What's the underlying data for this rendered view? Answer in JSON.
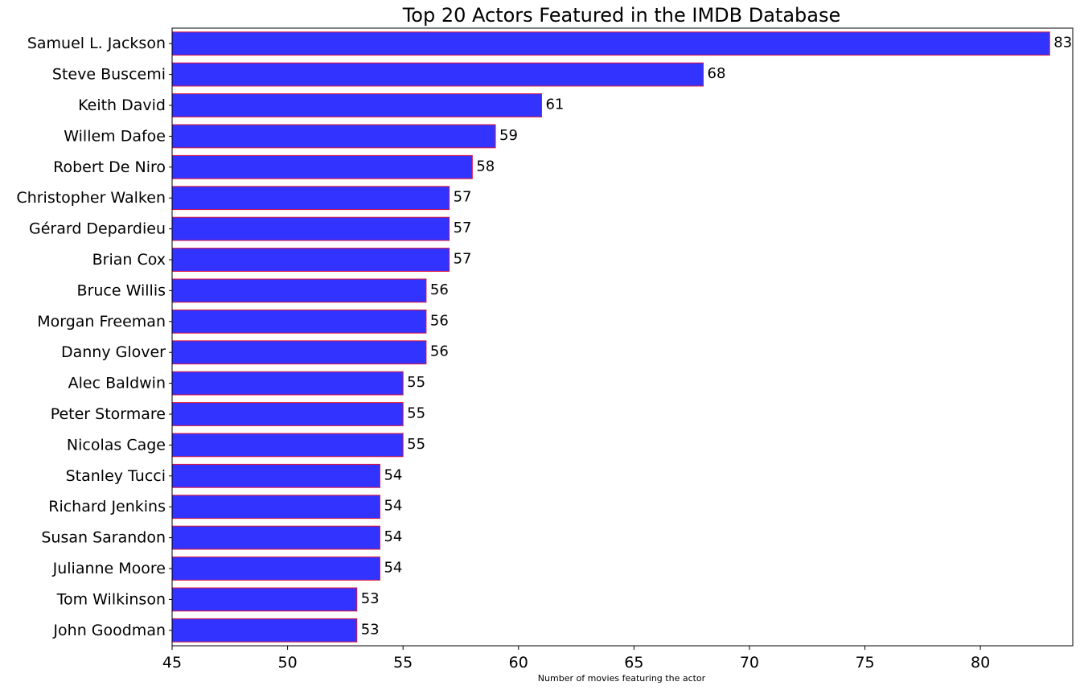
{
  "chart_data": {
    "type": "bar",
    "orientation": "horizontal",
    "title": "Top 20 Actors Featured in the IMDB Database",
    "xlabel": "Number of movies featuring the actor",
    "ylabel": "",
    "xlim": [
      45,
      84
    ],
    "xticks": [
      45,
      50,
      55,
      60,
      65,
      70,
      75,
      80
    ],
    "grid": false,
    "bar_color": "#3333ff",
    "bar_edge_color": "#dc143c",
    "categories": [
      "Samuel L. Jackson",
      "Steve Buscemi",
      "Keith David",
      "Willem Dafoe",
      "Robert De Niro",
      "Christopher Walken",
      "Gérard Depardieu",
      "Brian Cox",
      "Bruce Willis",
      "Morgan Freeman",
      "Danny Glover",
      "Alec Baldwin",
      "Peter Stormare",
      "Nicolas Cage",
      "Stanley Tucci",
      "Richard Jenkins",
      "Susan Sarandon",
      "Julianne Moore",
      "Tom Wilkinson",
      "John Goodman"
    ],
    "values": [
      83,
      68,
      61,
      59,
      58,
      57,
      57,
      57,
      56,
      56,
      56,
      55,
      55,
      55,
      54,
      54,
      54,
      54,
      53,
      53
    ]
  }
}
